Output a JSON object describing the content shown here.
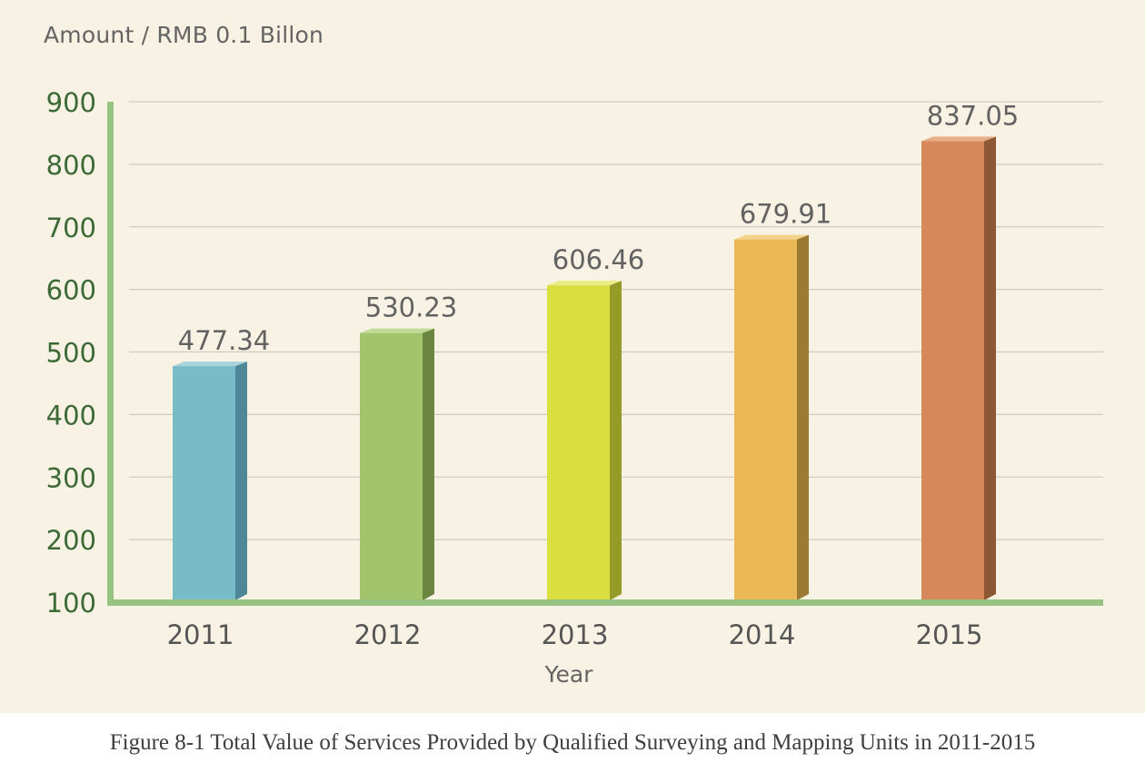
{
  "chart_data": {
    "type": "bar",
    "title": "",
    "ylabel": "Amount / RMB 0.1 Billon",
    "xlabel": "Year",
    "categories": [
      "2011",
      "2012",
      "2013",
      "2014",
      "2015"
    ],
    "values": [
      477.34,
      530.23,
      606.46,
      679.91,
      837.05
    ],
    "value_labels": [
      "477.34",
      "530.23",
      "606.46",
      "679.91",
      "837.05"
    ],
    "ylim": [
      100,
      900
    ],
    "yticks": [
      "100",
      "200",
      "300",
      "400",
      "500",
      "600",
      "700",
      "800",
      "900"
    ],
    "grid": true,
    "colors": [
      {
        "face": "#79bbc7",
        "side": "#4e8797",
        "top": "#a6d3dc"
      },
      {
        "face": "#a2c46b",
        "side": "#6a8641",
        "top": "#c2da98"
      },
      {
        "face": "#dade3e",
        "side": "#969a27",
        "top": "#ebec84"
      },
      {
        "face": "#eab955",
        "side": "#9c7a34",
        "top": "#f3d28c"
      },
      {
        "face": "#d6885a",
        "side": "#8e5836",
        "top": "#e8ae88"
      }
    ],
    "axis_color": "#96c282",
    "tick_color": "#3b6a36",
    "grid_color": "#cfcbc0"
  },
  "caption": "Figure 8-1 Total Value of Services Provided by Qualified Surveying and Mapping Units in 2011-2015"
}
